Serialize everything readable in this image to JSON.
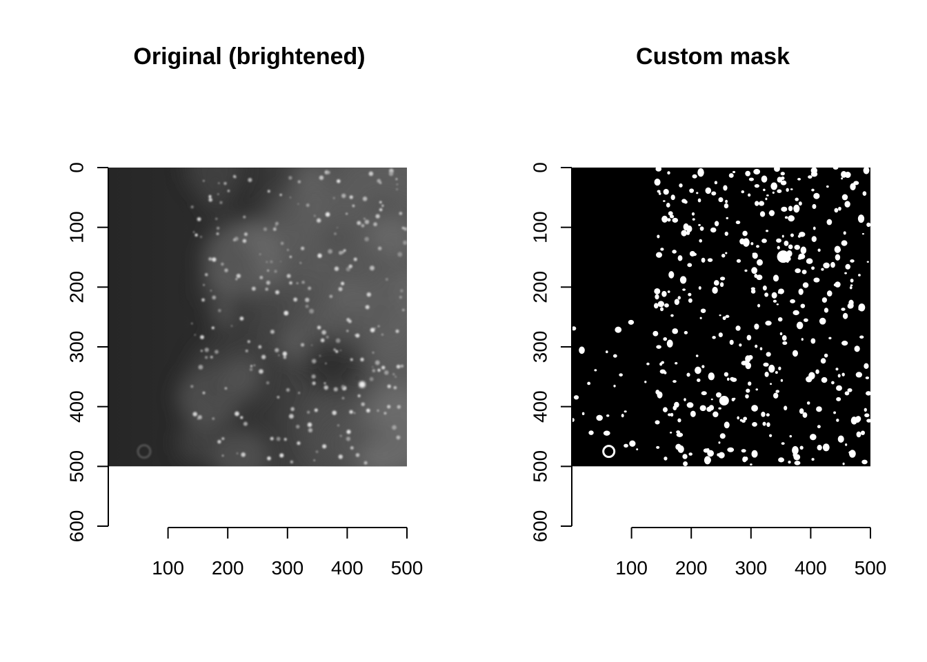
{
  "chart_data": [
    {
      "type": "image",
      "title": "Original (brightened)",
      "image_extent": {
        "x": [
          0,
          500
        ],
        "y": [
          0,
          500
        ]
      },
      "xlim": [
        0,
        500
      ],
      "ylim": [
        600,
        0
      ],
      "x_ticks": [
        100,
        200,
        300,
        400,
        500
      ],
      "y_ticks": [
        0,
        100,
        200,
        300,
        400,
        500,
        600
      ],
      "x_tick_labels": [
        "100",
        "200",
        "300",
        "400",
        "500"
      ],
      "y_tick_labels": [
        "0",
        "100",
        "200",
        "300",
        "400",
        "500",
        "600"
      ],
      "render": "grayscale fluorescence image, dark left side, brighter textured right side",
      "colors": {
        "background": "#2a2a2a",
        "bright": "#9a9a9a",
        "spot": "#e6e6e6"
      }
    },
    {
      "type": "image",
      "title": "Custom mask",
      "image_extent": {
        "x": [
          0,
          500
        ],
        "y": [
          0,
          500
        ]
      },
      "xlim": [
        0,
        500
      ],
      "ylim": [
        600,
        0
      ],
      "x_ticks": [
        100,
        200,
        300,
        400,
        500
      ],
      "y_ticks": [
        0,
        100,
        200,
        300,
        400,
        500,
        600
      ],
      "x_tick_labels": [
        "100",
        "200",
        "300",
        "400",
        "500"
      ],
      "y_tick_labels": [
        "0",
        "100",
        "200",
        "300",
        "400",
        "500",
        "600"
      ],
      "render": "binary mask, black background with white blobs concentrated on the right",
      "colors": {
        "background": "#000000",
        "spot": "#ffffff"
      }
    }
  ]
}
